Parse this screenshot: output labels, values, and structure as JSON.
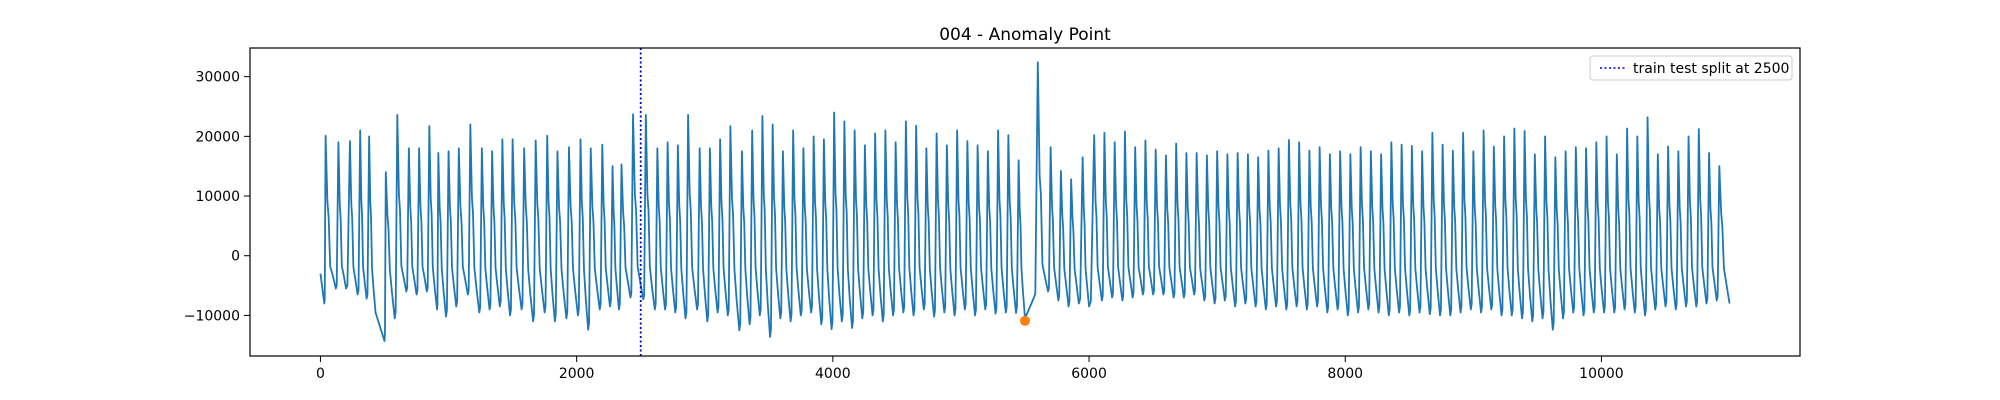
{
  "chart_data": {
    "type": "line",
    "title": "004 - Anomaly Point",
    "xlabel": "",
    "ylabel": "",
    "xlim": [
      -550,
      11550
    ],
    "ylim": [
      -16800,
      34800
    ],
    "x_ticks": [
      0,
      2000,
      4000,
      6000,
      8000,
      10000
    ],
    "y_ticks": [
      -10000,
      0,
      10000,
      20000,
      30000
    ],
    "grid": false,
    "series": [
      {
        "type": "line",
        "color": "#1f77b4",
        "x_start": 0,
        "x_end": 11000,
        "peaks": [
          [
            40,
            20100
          ],
          [
            140,
            19000
          ],
          [
            230,
            19200
          ],
          [
            310,
            21000
          ],
          [
            380,
            20000
          ],
          [
            510,
            14000
          ],
          [
            600,
            23600
          ],
          [
            690,
            18000
          ],
          [
            770,
            18000
          ],
          [
            850,
            21700
          ],
          [
            920,
            17200
          ],
          [
            1000,
            17500
          ],
          [
            1080,
            18000
          ],
          [
            1170,
            22000
          ],
          [
            1260,
            18000
          ],
          [
            1340,
            17500
          ],
          [
            1420,
            19500
          ],
          [
            1500,
            19500
          ],
          [
            1590,
            18000
          ],
          [
            1680,
            19300
          ],
          [
            1770,
            20100
          ],
          [
            1850,
            17500
          ],
          [
            1940,
            18200
          ],
          [
            2030,
            19500
          ],
          [
            2110,
            18000
          ],
          [
            2200,
            18600
          ],
          [
            2280,
            15000
          ],
          [
            2350,
            15300
          ],
          [
            2440,
            23700
          ],
          [
            2540,
            23600
          ],
          [
            2630,
            18000
          ],
          [
            2710,
            19000
          ],
          [
            2790,
            18500
          ],
          [
            2870,
            23600
          ],
          [
            2960,
            18000
          ],
          [
            3040,
            18000
          ],
          [
            3120,
            19500
          ],
          [
            3200,
            21700
          ],
          [
            3290,
            17500
          ],
          [
            3370,
            21000
          ],
          [
            3450,
            23400
          ],
          [
            3530,
            22000
          ],
          [
            3610,
            17500
          ],
          [
            3690,
            21000
          ],
          [
            3770,
            18000
          ],
          [
            3850,
            20000
          ],
          [
            3930,
            19500
          ],
          [
            4010,
            24000
          ],
          [
            4090,
            22500
          ],
          [
            4170,
            21000
          ],
          [
            4250,
            18500
          ],
          [
            4330,
            20500
          ],
          [
            4410,
            21000
          ],
          [
            4490,
            19000
          ],
          [
            4570,
            22500
          ],
          [
            4650,
            21800
          ],
          [
            4730,
            18000
          ],
          [
            4810,
            20500
          ],
          [
            4890,
            18500
          ],
          [
            4970,
            21000
          ],
          [
            5050,
            19200
          ],
          [
            5130,
            18500
          ],
          [
            5210,
            17500
          ],
          [
            5290,
            21000
          ],
          [
            5370,
            20200
          ],
          [
            5450,
            16000
          ],
          [
            5600,
            32400
          ],
          [
            5700,
            18200
          ],
          [
            5780,
            14200
          ],
          [
            5860,
            12800
          ],
          [
            5950,
            16500
          ],
          [
            6040,
            20200
          ],
          [
            6120,
            20600
          ],
          [
            6200,
            19000
          ],
          [
            6280,
            20800
          ],
          [
            6360,
            18200
          ],
          [
            6440,
            19300
          ],
          [
            6520,
            17800
          ],
          [
            6600,
            16800
          ],
          [
            6680,
            18800
          ],
          [
            6760,
            17200
          ],
          [
            6840,
            17200
          ],
          [
            6920,
            16800
          ],
          [
            7000,
            17500
          ],
          [
            7080,
            17000
          ],
          [
            7160,
            17200
          ],
          [
            7240,
            17000
          ],
          [
            7320,
            16500
          ],
          [
            7400,
            17600
          ],
          [
            7480,
            18000
          ],
          [
            7560,
            19400
          ],
          [
            7640,
            19000
          ],
          [
            7720,
            17600
          ],
          [
            7800,
            18200
          ],
          [
            7880,
            17000
          ],
          [
            7960,
            17500
          ],
          [
            8040,
            17000
          ],
          [
            8120,
            18200
          ],
          [
            8200,
            17500
          ],
          [
            8280,
            17000
          ],
          [
            8360,
            19000
          ],
          [
            8440,
            18600
          ],
          [
            8520,
            18400
          ],
          [
            8600,
            17500
          ],
          [
            8680,
            20600
          ],
          [
            8760,
            18600
          ],
          [
            8840,
            17600
          ],
          [
            8920,
            20600
          ],
          [
            9000,
            17500
          ],
          [
            9080,
            21000
          ],
          [
            9160,
            18300
          ],
          [
            9240,
            20000
          ],
          [
            9320,
            21300
          ],
          [
            9400,
            20900
          ],
          [
            9480,
            17000
          ],
          [
            9560,
            20000
          ],
          [
            9640,
            16500
          ],
          [
            9720,
            17500
          ],
          [
            9800,
            18200
          ],
          [
            9880,
            18000
          ],
          [
            9960,
            19000
          ],
          [
            10040,
            20000
          ],
          [
            10120,
            17000
          ],
          [
            10200,
            21300
          ],
          [
            10280,
            20000
          ],
          [
            10360,
            23200
          ],
          [
            10440,
            17000
          ],
          [
            10520,
            18300
          ],
          [
            10600,
            17500
          ],
          [
            10680,
            20000
          ],
          [
            10760,
            21200
          ],
          [
            10840,
            17200
          ],
          [
            10920,
            15000
          ]
        ],
        "troughs": [
          [
            0,
            -3000
          ],
          [
            30,
            -8000
          ],
          [
            120,
            -5500
          ],
          [
            200,
            -5500
          ],
          [
            290,
            -6500
          ],
          [
            360,
            -7200
          ],
          [
            430,
            -9500
          ],
          [
            500,
            -14300
          ],
          [
            580,
            -10500
          ],
          [
            670,
            -6000
          ],
          [
            750,
            -6500
          ],
          [
            830,
            -6000
          ],
          [
            910,
            -9000
          ],
          [
            980,
            -10200
          ],
          [
            1060,
            -8500
          ],
          [
            1150,
            -6500
          ],
          [
            1240,
            -9500
          ],
          [
            1320,
            -9000
          ],
          [
            1400,
            -8500
          ],
          [
            1480,
            -10000
          ],
          [
            1570,
            -9000
          ],
          [
            1660,
            -11000
          ],
          [
            1750,
            -9500
          ],
          [
            1830,
            -11000
          ],
          [
            1920,
            -10500
          ],
          [
            2010,
            -10000
          ],
          [
            2090,
            -12400
          ],
          [
            2180,
            -9000
          ],
          [
            2260,
            -8500
          ],
          [
            2330,
            -9000
          ],
          [
            2420,
            -7000
          ],
          [
            2520,
            -7300
          ],
          [
            2610,
            -9000
          ],
          [
            2690,
            -9000
          ],
          [
            2770,
            -9500
          ],
          [
            2850,
            -10500
          ],
          [
            2940,
            -9000
          ],
          [
            3020,
            -11000
          ],
          [
            3100,
            -9500
          ],
          [
            3180,
            -10000
          ],
          [
            3270,
            -12500
          ],
          [
            3350,
            -11500
          ],
          [
            3430,
            -10000
          ],
          [
            3510,
            -13600
          ],
          [
            3590,
            -10500
          ],
          [
            3670,
            -11000
          ],
          [
            3750,
            -10000
          ],
          [
            3830,
            -9500
          ],
          [
            3910,
            -11500
          ],
          [
            3990,
            -12300
          ],
          [
            4070,
            -11000
          ],
          [
            4150,
            -12100
          ],
          [
            4230,
            -10500
          ],
          [
            4310,
            -10000
          ],
          [
            4390,
            -11000
          ],
          [
            4470,
            -10000
          ],
          [
            4550,
            -9500
          ],
          [
            4630,
            -10000
          ],
          [
            4710,
            -9000
          ],
          [
            4790,
            -10200
          ],
          [
            4870,
            -9500
          ],
          [
            4950,
            -10000
          ],
          [
            5030,
            -9000
          ],
          [
            5110,
            -10000
          ],
          [
            5190,
            -9000
          ],
          [
            5270,
            -9700
          ],
          [
            5350,
            -9500
          ],
          [
            5430,
            -9600
          ],
          [
            5500,
            -10500
          ],
          [
            5570,
            -7000
          ],
          [
            5680,
            -6000
          ],
          [
            5760,
            -7500
          ],
          [
            5840,
            -8500
          ],
          [
            5920,
            -8000
          ],
          [
            6000,
            -8500
          ],
          [
            6100,
            -7500
          ],
          [
            6180,
            -7000
          ],
          [
            6260,
            -7500
          ],
          [
            6340,
            -7000
          ],
          [
            6420,
            -6500
          ],
          [
            6500,
            -6500
          ],
          [
            6580,
            -6500
          ],
          [
            6660,
            -7000
          ],
          [
            6740,
            -7000
          ],
          [
            6820,
            -6500
          ],
          [
            6900,
            -7500
          ],
          [
            6980,
            -8000
          ],
          [
            7060,
            -7500
          ],
          [
            7140,
            -8500
          ],
          [
            7220,
            -8000
          ],
          [
            7300,
            -8500
          ],
          [
            7380,
            -9000
          ],
          [
            7460,
            -8500
          ],
          [
            7540,
            -9000
          ],
          [
            7620,
            -8500
          ],
          [
            7700,
            -9000
          ],
          [
            7780,
            -8500
          ],
          [
            7860,
            -9500
          ],
          [
            7940,
            -9000
          ],
          [
            8020,
            -10000
          ],
          [
            8100,
            -9500
          ],
          [
            8180,
            -9000
          ],
          [
            8260,
            -9500
          ],
          [
            8340,
            -10000
          ],
          [
            8420,
            -9500
          ],
          [
            8500,
            -10000
          ],
          [
            8580,
            -9500
          ],
          [
            8660,
            -9800
          ],
          [
            8740,
            -10000
          ],
          [
            8820,
            -10000
          ],
          [
            8900,
            -9500
          ],
          [
            8980,
            -9000
          ],
          [
            9060,
            -9500
          ],
          [
            9140,
            -9000
          ],
          [
            9220,
            -10000
          ],
          [
            9300,
            -10000
          ],
          [
            9380,
            -10500
          ],
          [
            9460,
            -11000
          ],
          [
            9540,
            -10500
          ],
          [
            9620,
            -12400
          ],
          [
            9700,
            -10500
          ],
          [
            9780,
            -9500
          ],
          [
            9860,
            -10000
          ],
          [
            9940,
            -9500
          ],
          [
            10020,
            -9500
          ],
          [
            10100,
            -9500
          ],
          [
            10180,
            -9000
          ],
          [
            10260,
            -9500
          ],
          [
            10340,
            -10000
          ],
          [
            10420,
            -9000
          ],
          [
            10500,
            -8500
          ],
          [
            10580,
            -9000
          ],
          [
            10660,
            -8500
          ],
          [
            10740,
            -8500
          ],
          [
            10820,
            -8000
          ],
          [
            10900,
            -7500
          ],
          [
            11000,
            -8000
          ]
        ]
      }
    ],
    "markers": [
      {
        "label": "anomaly point",
        "x": 5500,
        "y": -10900,
        "color": "#ff7f0e"
      }
    ],
    "vlines": [
      {
        "x": 2500,
        "color": "#0000cc",
        "style": "dotted",
        "label": "train test split at 2500"
      }
    ],
    "legend": {
      "position": "top-right",
      "entries": [
        {
          "label": "train test split at 2500",
          "style": "dotted",
          "color": "#0000cc"
        }
      ]
    }
  }
}
